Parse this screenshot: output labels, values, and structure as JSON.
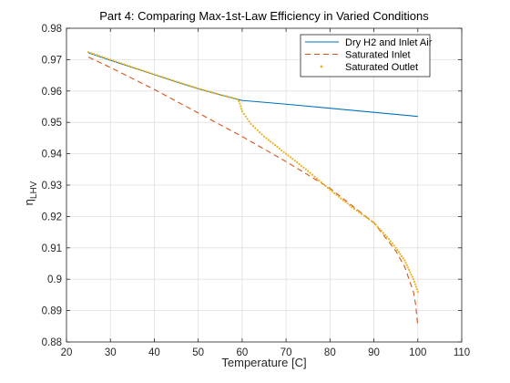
{
  "chart_data": {
    "type": "line",
    "title": "Part 4: Comparing Max-1st-Law Efficiency in Varied Conditions",
    "xlabel": "Temperature [C]",
    "ylabel_main": "η",
    "ylabel_sub": "LHV",
    "xlim": [
      20,
      110
    ],
    "ylim": [
      0.88,
      0.98
    ],
    "xticks": [
      20,
      30,
      40,
      50,
      60,
      70,
      80,
      90,
      100,
      110
    ],
    "xtick_labels": [
      "20",
      "30",
      "40",
      "50",
      "60",
      "70",
      "80",
      "90",
      "100",
      "110"
    ],
    "yticks": [
      0.88,
      0.89,
      0.9,
      0.91,
      0.92,
      0.93,
      0.94,
      0.95,
      0.96,
      0.97,
      0.98
    ],
    "ytick_labels": [
      "0.88",
      "0.89",
      "0.9",
      "0.91",
      "0.92",
      "0.93",
      "0.94",
      "0.95",
      "0.96",
      "0.97",
      "0.98"
    ],
    "grid": true,
    "legend_position": "top-right",
    "series": [
      {
        "name": "Dry H2 and Inlet Air",
        "style": "solid",
        "color": "#0072BD",
        "x": [
          25,
          30,
          35,
          40,
          45,
          50,
          55,
          59,
          60,
          70,
          80,
          90,
          100
        ],
        "y": [
          0.9722,
          0.9698,
          0.9675,
          0.9652,
          0.9629,
          0.9607,
          0.9588,
          0.9573,
          0.957,
          0.9558,
          0.9545,
          0.9532,
          0.9519
        ]
      },
      {
        "name": "Saturated Inlet",
        "style": "dashed",
        "color": "#D95319",
        "x": [
          25,
          30,
          40,
          50,
          60,
          70,
          80,
          90,
          95,
          97,
          98,
          99,
          99.5,
          100
        ],
        "y": [
          0.9708,
          0.9675,
          0.9605,
          0.953,
          0.9455,
          0.9375,
          0.929,
          0.918,
          0.909,
          0.904,
          0.9,
          0.896,
          0.892,
          0.885
        ]
      },
      {
        "name": "Saturated Outlet",
        "style": "dotted",
        "color": "#EDB120",
        "x": [
          25,
          30,
          35,
          40,
          45,
          50,
          55,
          59,
          59.5,
          60,
          62,
          65,
          70,
          75,
          80,
          85,
          90,
          93,
          95,
          96,
          97,
          98,
          99,
          100
        ],
        "y": [
          0.9724,
          0.97,
          0.9676,
          0.9653,
          0.963,
          0.9608,
          0.9588,
          0.9574,
          0.956,
          0.9535,
          0.9495,
          0.9455,
          0.94,
          0.9345,
          0.9285,
          0.923,
          0.918,
          0.9135,
          0.91,
          0.908,
          0.906,
          0.903,
          0.9,
          0.896
        ]
      }
    ]
  }
}
